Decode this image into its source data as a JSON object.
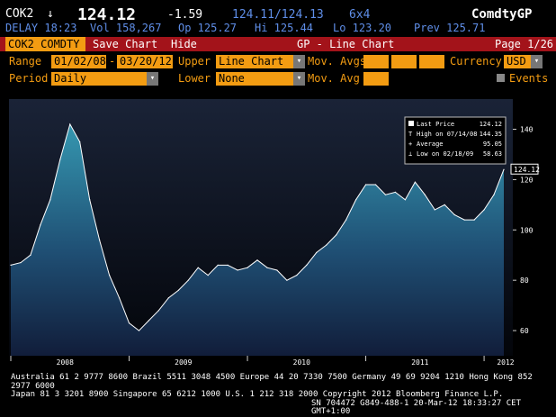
{
  "header": {
    "ticker": "COK2",
    "arrow": "↓",
    "price": "124.12",
    "change": "-1.59",
    "bid_ask": "124.11/124.13",
    "size": "6x4",
    "brand": "ComdtyGP",
    "delay": "DELAY 18:23",
    "volume": "Vol 158,267",
    "open": "Op 125.27",
    "high": "Hi 125.44",
    "low": "Lo 123.20",
    "prev": "Prev 125.71"
  },
  "toolbar": {
    "security": "COK2 COMDTY",
    "save": "Save Chart",
    "hide": "Hide",
    "title": "GP - Line Chart",
    "page": "Page 1/26"
  },
  "controls": {
    "range_label": "Range",
    "start_date": "01/02/08",
    "end_date": "03/20/12",
    "upper_label": "Upper",
    "upper_value": "Line Chart",
    "mov_avgs_label": "Mov. Avgs",
    "currency_label": "Currency",
    "currency_value": "USD",
    "period_label": "Period",
    "period_value": "Daily",
    "lower_label": "Lower",
    "lower_value": "None",
    "mov_avg_label": "Mov. Avg",
    "events_label": "Events"
  },
  "legend": {
    "last_price_label": "Last Price",
    "last_price": "124.12",
    "high_label": "High on 07/14/08",
    "high_value": "144.35",
    "average_label": "Average",
    "average_value": "95.05",
    "low_label": "Low on 02/18/09",
    "low_value": "58.63"
  },
  "colors": {
    "brand_red": "#a3131a",
    "accent_orange": "#f39c12",
    "ticker_blue": "#5f8ee8",
    "area_top": "#2f8aa3"
  },
  "chart_data": {
    "type": "area",
    "x": [
      "2008-01",
      "2008-02",
      "2008-03",
      "2008-04",
      "2008-05",
      "2008-06",
      "2008-07",
      "2008-08",
      "2008-09",
      "2008-10",
      "2008-11",
      "2008-12",
      "2009-01",
      "2009-02",
      "2009-03",
      "2009-04",
      "2009-05",
      "2009-06",
      "2009-07",
      "2009-08",
      "2009-09",
      "2009-10",
      "2009-11",
      "2009-12",
      "2010-01",
      "2010-02",
      "2010-03",
      "2010-04",
      "2010-05",
      "2010-06",
      "2010-07",
      "2010-08",
      "2010-09",
      "2010-10",
      "2010-11",
      "2010-12",
      "2011-01",
      "2011-02",
      "2011-03",
      "2011-04",
      "2011-05",
      "2011-06",
      "2011-07",
      "2011-08",
      "2011-09",
      "2011-10",
      "2011-11",
      "2011-12",
      "2012-01",
      "2012-02",
      "2012-03"
    ],
    "values": [
      86,
      87,
      90,
      102,
      112,
      128,
      142,
      135,
      112,
      96,
      82,
      73,
      63,
      60,
      64,
      68,
      73,
      76,
      80,
      85,
      82,
      86,
      86,
      84,
      85,
      88,
      85,
      84,
      80,
      82,
      86,
      91,
      94,
      98,
      104,
      112,
      118,
      118,
      114,
      115,
      112,
      119,
      114,
      108,
      110,
      106,
      104,
      104,
      108,
      114,
      124
    ],
    "xticks": [
      "2008",
      "2009",
      "2010",
      "2011",
      "2012"
    ],
    "yticks": [
      60,
      80,
      100,
      120,
      140
    ],
    "ylim": [
      50,
      152
    ],
    "last_value_label": "124.12",
    "grid": false
  },
  "footer": {
    "line1": "Australia 61 2 9777 8600 Brazil 5511 3048 4500 Europe 44 20 7330 7500 Germany 49 69 9204 1210 Hong Kong 852 2977 6000",
    "line2": "Japan 81 3 3201 8900        Singapore 65 6212 1000        U.S. 1 212 318 2000        Copyright 2012 Bloomberg Finance L.P.",
    "line3": "SN 704472 G849-488-1 20-Mar-12 18:33:27 CET  GMT+1:00"
  }
}
